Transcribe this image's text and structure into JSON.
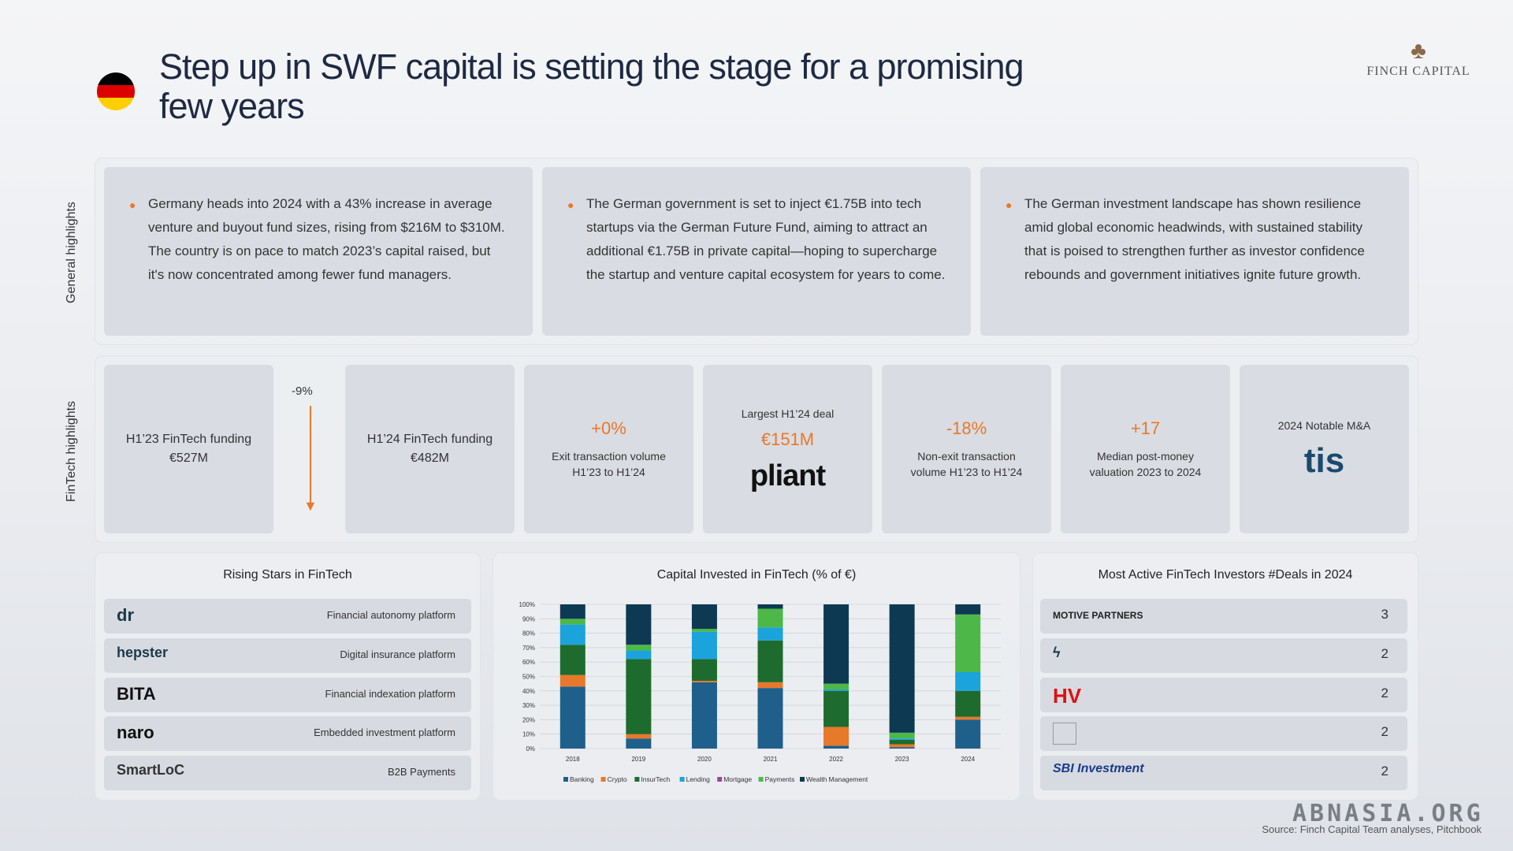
{
  "header": {
    "title": "Step up in SWF capital is setting the stage for a promising few years",
    "logo": "FINCH CAPITAL",
    "flag_colors": [
      "#000000",
      "#dd0000",
      "#ffce00"
    ]
  },
  "labels": {
    "general": "General highlights",
    "fintech": "FinTech highlights"
  },
  "general": [
    "Germany heads into 2024 with a 43% increase in average venture and buyout fund sizes, rising from $216M to $310M. The country is on pace to match 2023’s capital raised, but it's now concentrated among fewer fund managers.",
    "The German government is set to inject €1.75B into tech startups via the German Future Fund, aiming to attract an additional €1.75B in private capital—hoping to supercharge the startup and venture capital ecosystem for years to come.",
    "The German investment landscape has shown resilience amid global economic headwinds, with sustained stability that is poised to strengthen further as investor confidence rebounds and government initiatives ignite future growth."
  ],
  "fintech": {
    "h123": "H1’23 FinTech funding €527M",
    "change": "-9%",
    "h124": "H1’24 FinTech funding €482M",
    "exit_val": "+0%",
    "exit_lbl": "Exit transaction volume H1’23 to H1’24",
    "deal_lbl": "Largest H1’24 deal",
    "deal_val": "€151M",
    "deal_brand": "pliant",
    "nonexit_val": "-18%",
    "nonexit_lbl": "Non-exit transaction volume H1’23 to H1’24",
    "median_val": "+17",
    "median_lbl": "Median post-money valuation 2023 to 2024",
    "ma_lbl": "2024 Notable M&A",
    "ma_brand": "tis"
  },
  "rising": {
    "title": "Rising Stars in FinTech",
    "items": [
      {
        "brand": "dr",
        "label": "Financial autonomy platform"
      },
      {
        "brand": "hepster",
        "label": "Digital insurance platform"
      },
      {
        "brand": "BITA",
        "label": "Financial indexation platform"
      },
      {
        "brand": "naro",
        "label": "Embedded investment platform"
      },
      {
        "brand": "SmartLoC",
        "label": "B2B Payments"
      }
    ]
  },
  "investors": {
    "title": "Most Active FinTech Investors #Deals in 2024",
    "items": [
      {
        "brand": "MOTIVE PARTNERS",
        "count": "3"
      },
      {
        "brand": "",
        "count": "2"
      },
      {
        "brand": "HV",
        "count": "2"
      },
      {
        "brand": "",
        "count": "2"
      },
      {
        "brand": "SBI Investment",
        "count": "2"
      }
    ]
  },
  "source": "Source: Finch Capital Team analyses, Pitchbook",
  "watermark": "ABNASIA.ORG",
  "chart_data": {
    "type": "bar",
    "title": "Capital Invested in FinTech (% of €)",
    "categories": [
      "2018",
      "2019",
      "2020",
      "2021",
      "2022",
      "2023",
      "2024"
    ],
    "ylim": [
      0,
      100
    ],
    "yticks": [
      "0%",
      "10%",
      "20%",
      "30%",
      "40%",
      "50%",
      "60%",
      "70%",
      "80%",
      "90%",
      "100%"
    ],
    "series": [
      {
        "name": "Banking",
        "color": "#1f5f8b",
        "values": [
          43,
          7,
          46,
          42,
          2,
          1,
          20
        ]
      },
      {
        "name": "Crypto",
        "color": "#e8782a",
        "values": [
          8,
          3,
          1,
          4,
          13,
          2,
          2
        ]
      },
      {
        "name": "InsurTech",
        "color": "#1e6b2e",
        "values": [
          21,
          52,
          15,
          29,
          25,
          3,
          18
        ]
      },
      {
        "name": "Lending",
        "color": "#1ba3db",
        "values": [
          14,
          6,
          19,
          9,
          1,
          1,
          13
        ]
      },
      {
        "name": "Mortgage",
        "color": "#a044a0",
        "values": [
          0,
          0,
          0,
          0,
          0,
          0,
          0
        ]
      },
      {
        "name": "Payments",
        "color": "#4db848",
        "values": [
          4,
          4,
          2,
          13,
          4,
          4,
          40
        ]
      },
      {
        "name": "Wealth Management",
        "color": "#0d3a52",
        "values": [
          10,
          28,
          17,
          3,
          55,
          89,
          7
        ]
      }
    ],
    "legend": "bottom"
  }
}
